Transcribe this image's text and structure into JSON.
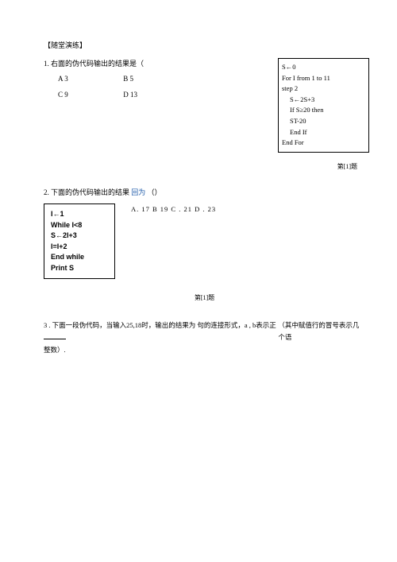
{
  "header": "【随堂演练】",
  "q1": {
    "stem": "1. 右面的伪代码输出的结果是（",
    "options": {
      "a": "A 3",
      "b": "B 5",
      "c": "C 9",
      "d": "D 13"
    },
    "code": {
      "l1": "S←0",
      "l2": "For I from 1 to 11",
      "l3": "step 2",
      "l4": "S←2S+3",
      "l5": "If S≥20 then",
      "l6": "ST-20",
      "l7": "End If",
      "l8": "End For"
    },
    "ref": "第[1]题"
  },
  "q2": {
    "stem_a": "2. 下面的伪代码输出的结果",
    "stem_b": "（）",
    "stem_mid": "回为",
    "options": "A.  17 B        19 C . 21 D . 23",
    "code": {
      "l1": "I←1",
      "l2": "While I<8",
      "l3": "S←2I+3",
      "l4": "I=I+2",
      "l5": "End while",
      "l6": "Print S"
    },
    "ref": "第[1]题"
  },
  "q3": {
    "part1": "3 . 下面一段伪代码，当输入25,18时，输出的结果为 句的连接形式，a , b表示正",
    "part2": "（其中赋值行的冒号表示几个语",
    "part3": "整数）."
  }
}
